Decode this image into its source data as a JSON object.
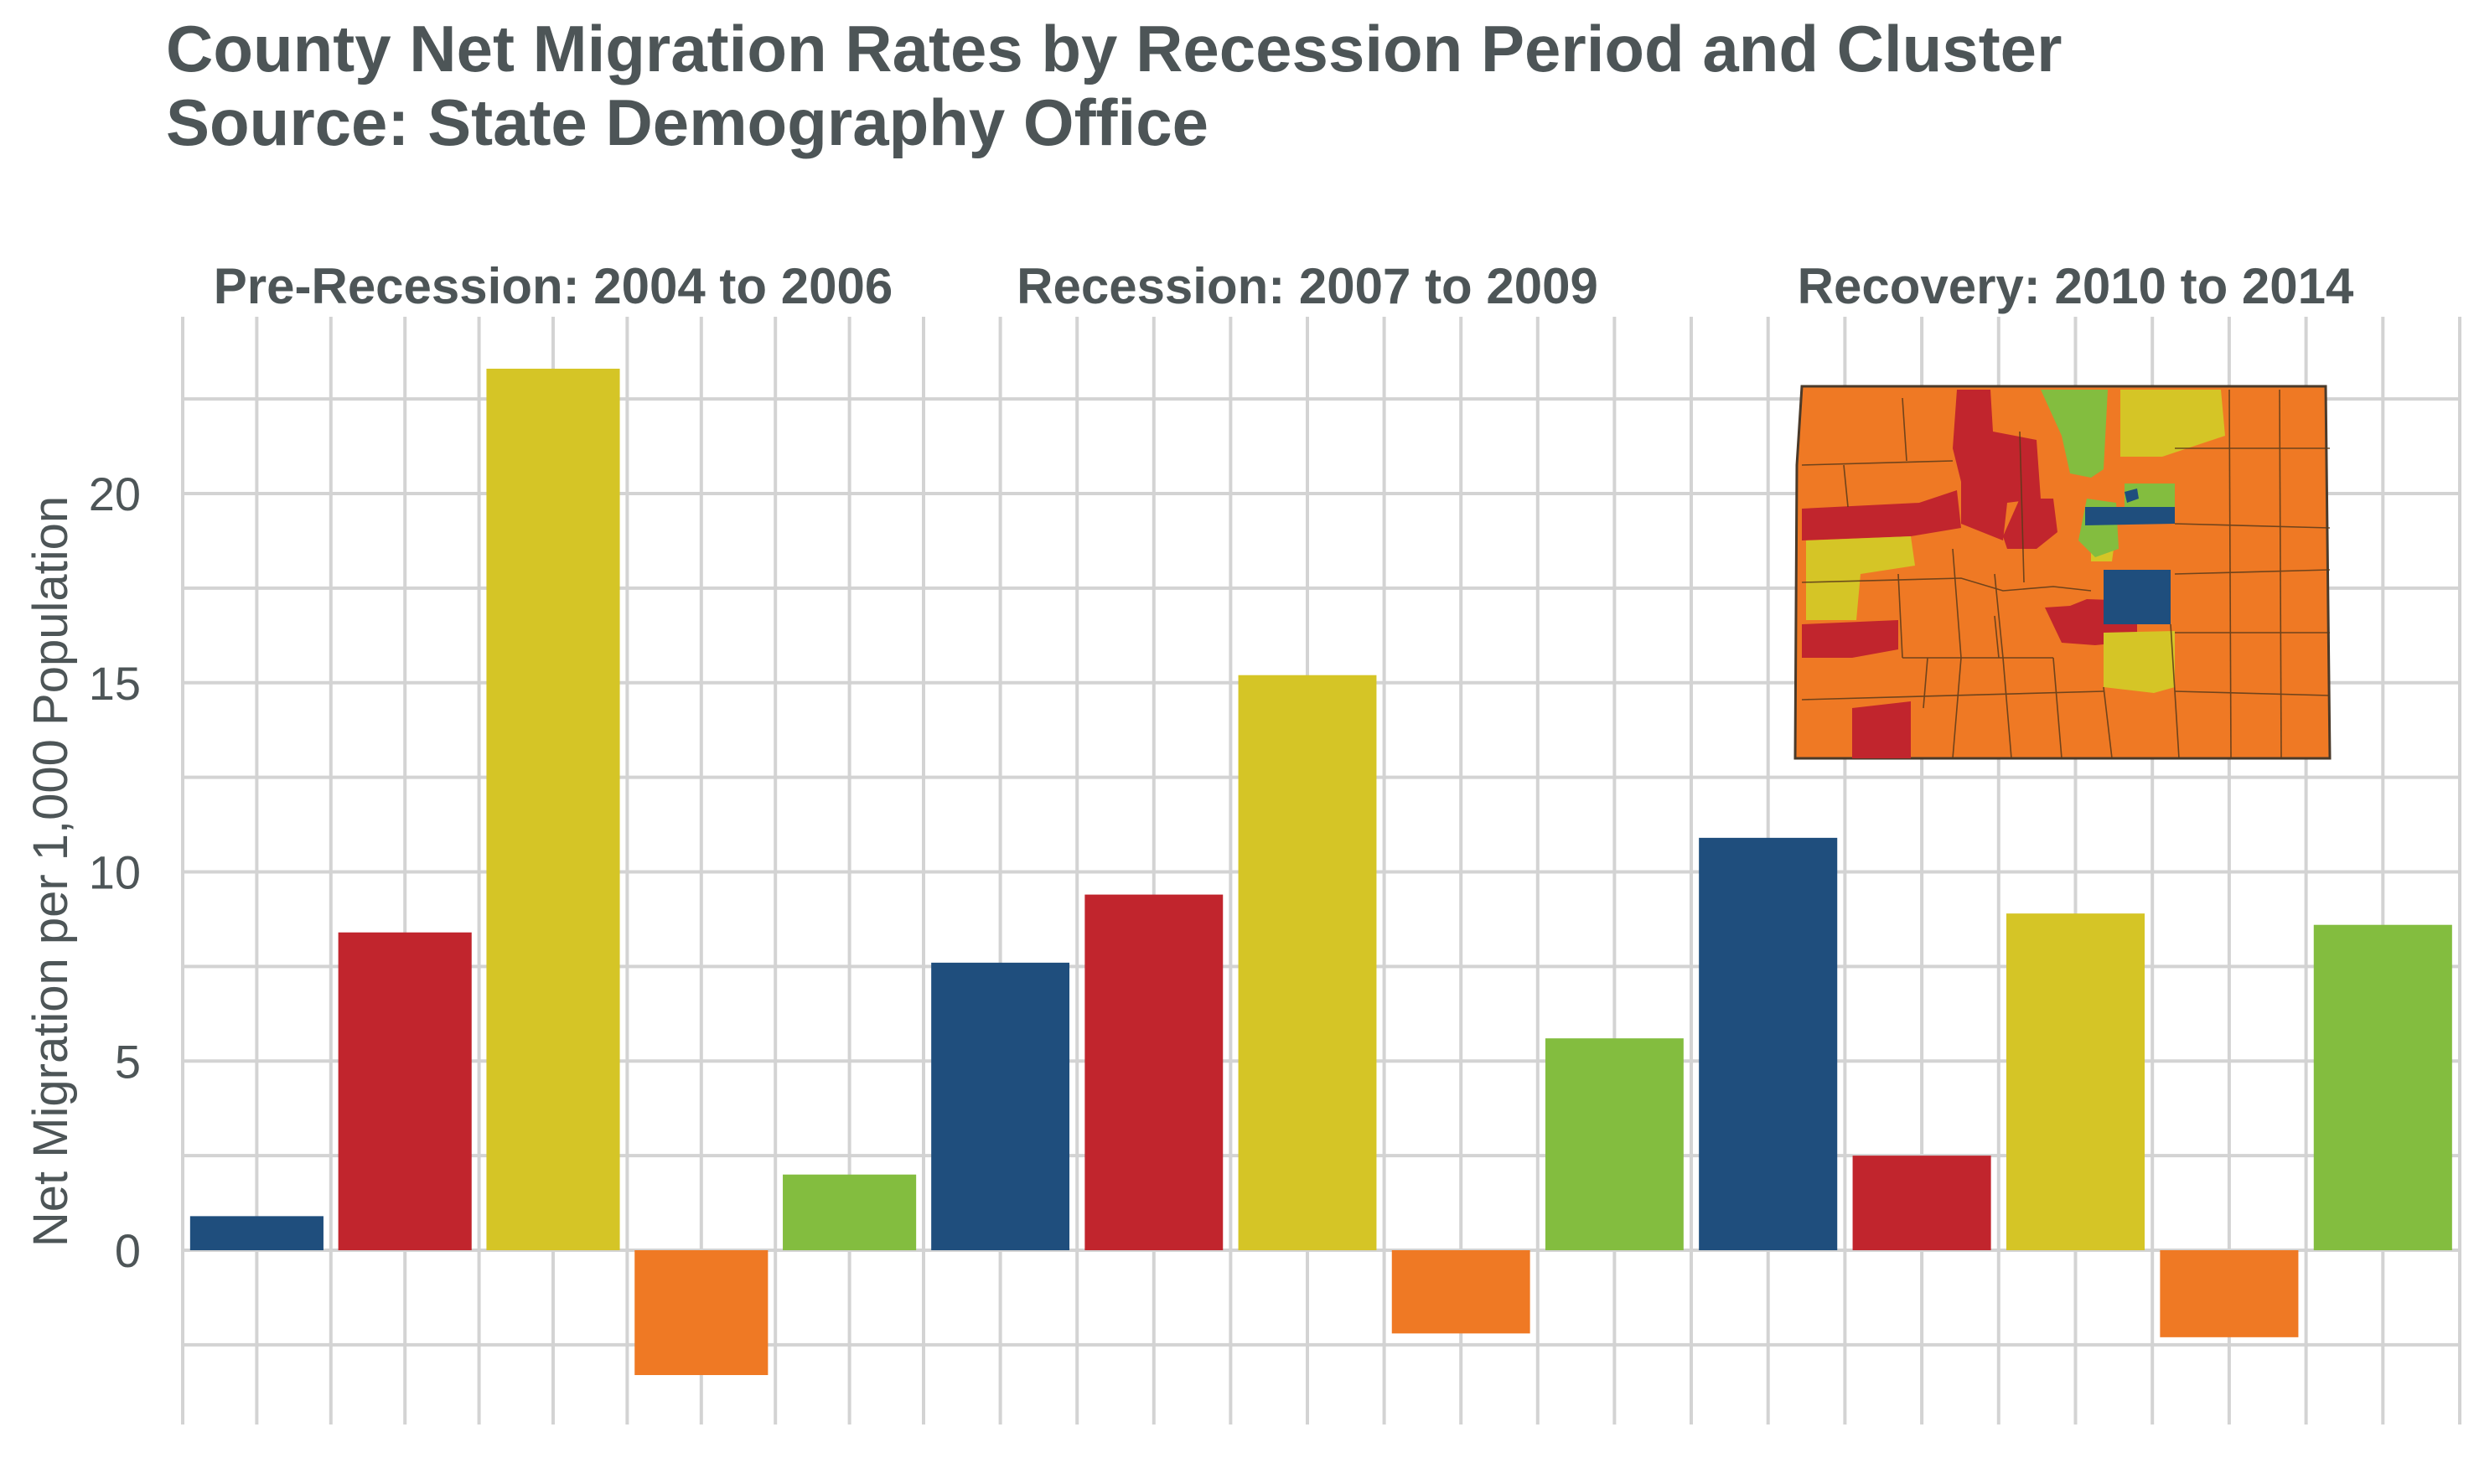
{
  "chart_data": {
    "type": "bar",
    "title_lines": [
      "County Net Migration Rates by Recession Period and Cluster",
      "Source: State Demography Office"
    ],
    "ylabel": "Net Migration per 1,000 Population",
    "xlabel": "",
    "ylim": [
      -4,
      24
    ],
    "yticks": [
      0,
      5,
      10,
      15,
      20
    ],
    "grid": true,
    "legend": "none",
    "cluster_colors": [
      "#1f4e7d",
      "#c1252d",
      "#d5c526",
      "#ef7924",
      "#83bd3f"
    ],
    "panels": [
      {
        "title": "Pre-Recession: 2004 to 2006",
        "values": [
          0.9,
          8.4,
          23.3,
          -3.3,
          2.0
        ]
      },
      {
        "title": "Recession: 2007 to 2009",
        "values": [
          7.6,
          9.4,
          15.2,
          -2.2,
          5.6
        ]
      },
      {
        "title": "Recovery: 2010 to 2014",
        "values": [
          10.9,
          2.5,
          8.9,
          -2.3,
          8.6
        ]
      }
    ],
    "inset_map": {
      "description": "Colorado county cluster map",
      "colors": {
        "background": "#ef7924",
        "border": "#4a3a2a"
      }
    }
  }
}
